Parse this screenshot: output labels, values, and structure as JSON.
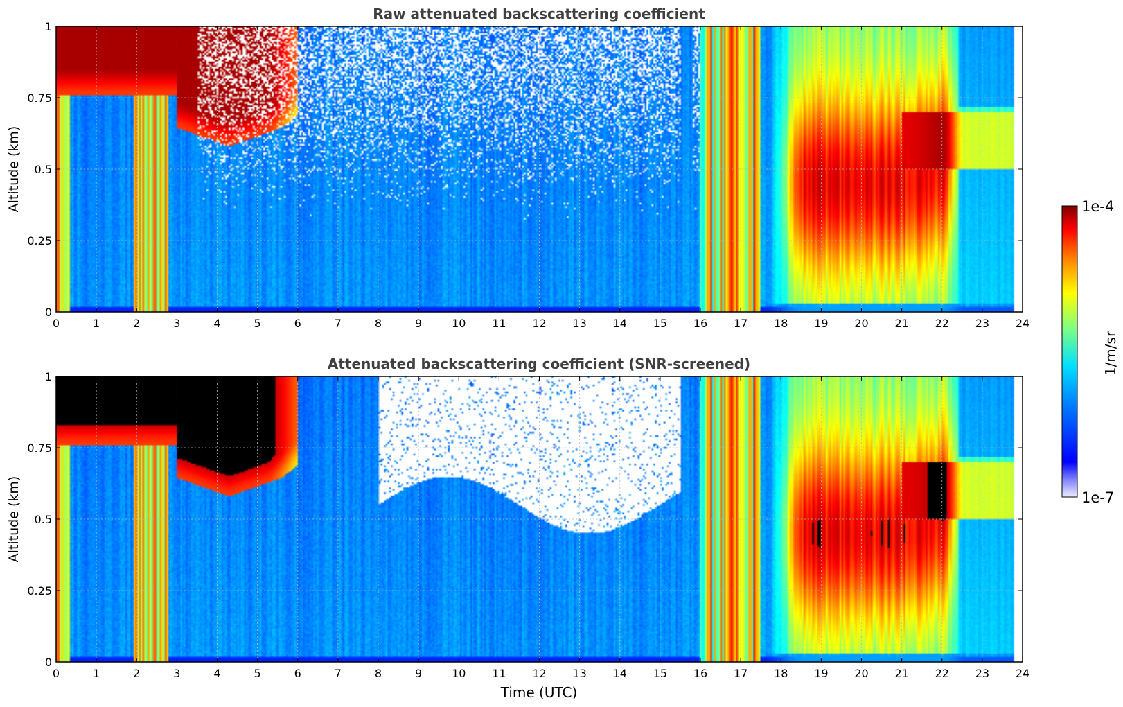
{
  "chart_data": [
    {
      "type": "heatmap",
      "title": "Raw attenuated backscattering coefficient",
      "xlabel": "",
      "ylabel": "Altitude (km)",
      "xlim": [
        0,
        24
      ],
      "ylim": [
        0,
        1
      ],
      "x_ticks": [
        "0",
        "1",
        "2",
        "3",
        "4",
        "5",
        "6",
        "7",
        "8",
        "9",
        "10",
        "11",
        "12",
        "13",
        "14",
        "15",
        "16",
        "17",
        "18",
        "19",
        "20",
        "21",
        "22",
        "23",
        "24"
      ],
      "y_ticks": [
        "0",
        "0.25",
        "0.5",
        "0.75",
        "1"
      ],
      "grid": true,
      "colorscale": "jet",
      "value_units": "1/m/sr",
      "value_range": [
        1e-07,
        0.0001
      ],
      "log_scale": true,
      "data_end_hour": 23.8
    },
    {
      "type": "heatmap",
      "title": "Attenuated backscattering coefficient (SNR-screened)",
      "xlabel": "Time (UTC)",
      "ylabel": "Altitude (km)",
      "xlim": [
        0,
        24
      ],
      "ylim": [
        0,
        1
      ],
      "x_ticks": [
        "0",
        "1",
        "2",
        "3",
        "4",
        "5",
        "6",
        "7",
        "8",
        "9",
        "10",
        "11",
        "12",
        "13",
        "14",
        "15",
        "16",
        "17",
        "18",
        "19",
        "20",
        "21",
        "22",
        "23",
        "24"
      ],
      "y_ticks": [
        "0",
        "0.25",
        "0.5",
        "0.75",
        "1"
      ],
      "grid": true,
      "colorscale": "jet",
      "value_units": "1/m/sr",
      "value_range": [
        1e-07,
        0.0001
      ],
      "log_scale": true,
      "screened": true,
      "data_end_hour": 23.8
    }
  ],
  "colorbar": {
    "max_label": "1e-4",
    "min_label": "1e-7",
    "label": "1/m/sr",
    "colormap": "jet"
  }
}
